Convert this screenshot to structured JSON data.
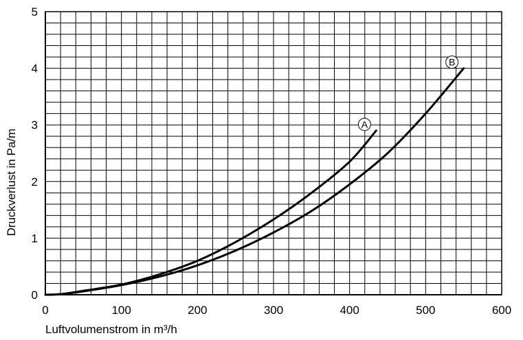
{
  "chart_data": {
    "type": "line",
    "xlabel": "Luftvolumenstrom in m³/h",
    "ylabel": "Druckverlust in Pa/m",
    "xlim": [
      0,
      600
    ],
    "ylim": [
      0,
      5
    ],
    "x_ticks": [
      0,
      100,
      200,
      300,
      400,
      500,
      600
    ],
    "y_ticks": [
      0,
      1,
      2,
      3,
      4,
      5
    ],
    "grid": true,
    "grid_minor_x_step": 20,
    "grid_minor_y_step": 0.2,
    "series": [
      {
        "name": "A",
        "color": "#000000",
        "x": [
          0,
          20,
          50,
          100,
          150,
          200,
          250,
          300,
          350,
          400,
          435
        ],
        "y": [
          0.0,
          0.01,
          0.07,
          0.18,
          0.36,
          0.6,
          0.93,
          1.33,
          1.8,
          2.35,
          2.9
        ]
      },
      {
        "name": "B",
        "color": "#000000",
        "x": [
          0,
          20,
          50,
          100,
          150,
          200,
          250,
          300,
          350,
          400,
          450,
          500,
          550
        ],
        "y": [
          0.0,
          0.01,
          0.06,
          0.17,
          0.32,
          0.52,
          0.78,
          1.1,
          1.48,
          1.95,
          2.5,
          3.2,
          4.0
        ]
      }
    ]
  }
}
